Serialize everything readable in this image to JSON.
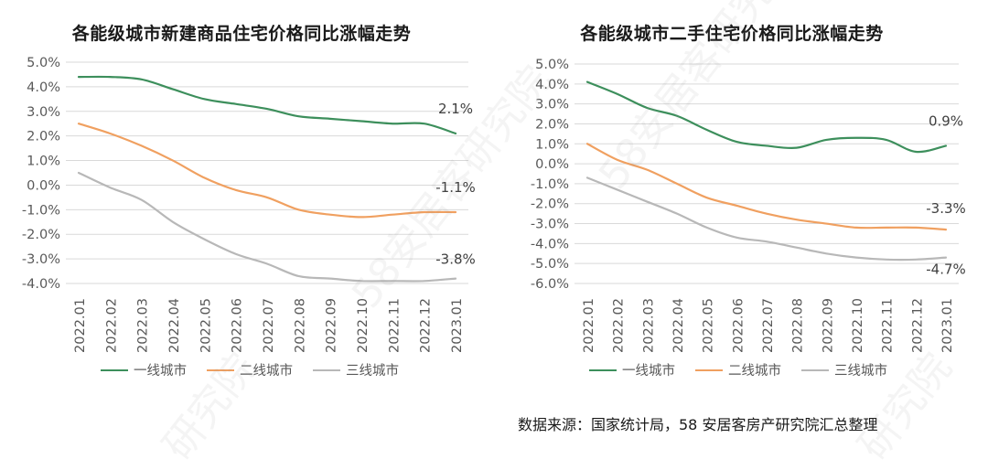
{
  "chart_data": [
    {
      "type": "line",
      "title": "各能级城市新建商品住宅价格同比涨幅走势",
      "categories": [
        "2022.01",
        "2022.02",
        "2022.03",
        "2022.04",
        "2022.05",
        "2022.06",
        "2022.07",
        "2022.08",
        "2022.09",
        "2022.10",
        "2022.11",
        "2022.12",
        "2023.01"
      ],
      "ylim": [
        -4.0,
        5.0
      ],
      "yticks": [
        "5.0%",
        "4.0%",
        "3.0%",
        "2.0%",
        "1.0%",
        "0.0%",
        "-1.0%",
        "-2.0%",
        "-3.0%",
        "-4.0%"
      ],
      "series": [
        {
          "name": "一线城市",
          "color": "#3d8f5c",
          "values": [
            4.4,
            4.4,
            4.3,
            3.9,
            3.5,
            3.3,
            3.1,
            2.8,
            2.7,
            2.6,
            2.5,
            2.5,
            2.1
          ]
        },
        {
          "name": "二线城市",
          "color": "#f0a060",
          "values": [
            2.5,
            2.1,
            1.6,
            1.0,
            0.3,
            -0.2,
            -0.5,
            -1.0,
            -1.2,
            -1.3,
            -1.2,
            -1.1,
            -1.1
          ]
        },
        {
          "name": "三线城市",
          "color": "#b8b8b8",
          "values": [
            0.5,
            -0.1,
            -0.6,
            -1.5,
            -2.2,
            -2.8,
            -3.2,
            -3.7,
            -3.8,
            -3.9,
            -3.9,
            -3.9,
            -3.8
          ]
        }
      ],
      "data_labels": [
        {
          "series": "一线城市",
          "text": "2.1%"
        },
        {
          "series": "二线城市",
          "text": "-1.1%"
        },
        {
          "series": "三线城市",
          "text": "-3.8%"
        }
      ]
    },
    {
      "type": "line",
      "title": "各能级城市二手住宅价格同比涨幅走势",
      "categories": [
        "2022.01",
        "2022.02",
        "2022.03",
        "2022.04",
        "2022.05",
        "2022.06",
        "2022.07",
        "2022.08",
        "2022.09",
        "2022.10",
        "2022.11",
        "2022.12",
        "2023.01"
      ],
      "ylim": [
        -6.0,
        5.0
      ],
      "yticks": [
        "5.0%",
        "4.0%",
        "3.0%",
        "2.0%",
        "1.0%",
        "0.0%",
        "-1.0%",
        "-2.0%",
        "-3.0%",
        "-4.0%",
        "-5.0%",
        "-6.0%"
      ],
      "series": [
        {
          "name": "一线城市",
          "color": "#3d8f5c",
          "values": [
            4.1,
            3.5,
            2.8,
            2.4,
            1.7,
            1.1,
            0.9,
            0.8,
            1.2,
            1.3,
            1.2,
            0.6,
            0.9
          ]
        },
        {
          "name": "二线城市",
          "color": "#f0a060",
          "values": [
            1.0,
            0.2,
            -0.3,
            -1.0,
            -1.7,
            -2.1,
            -2.5,
            -2.8,
            -3.0,
            -3.2,
            -3.2,
            -3.2,
            -3.3
          ]
        },
        {
          "name": "三线城市",
          "color": "#b8b8b8",
          "values": [
            -0.7,
            -1.3,
            -1.9,
            -2.5,
            -3.2,
            -3.7,
            -3.9,
            -4.2,
            -4.5,
            -4.7,
            -4.8,
            -4.8,
            -4.7
          ]
        }
      ],
      "data_labels": [
        {
          "series": "一线城市",
          "text": "0.9%"
        },
        {
          "series": "二线城市",
          "text": "-3.3%"
        },
        {
          "series": "三线城市",
          "text": "-4.7%"
        }
      ]
    }
  ],
  "legend": [
    "一线城市",
    "二线城市",
    "三线城市"
  ],
  "source_text": "数据来源：国家统计局，58 安居客房产研究院汇总整理",
  "watermarks": [
    "58安居客研究院",
    "研究院",
    "58安居客研究院",
    "研究院"
  ]
}
